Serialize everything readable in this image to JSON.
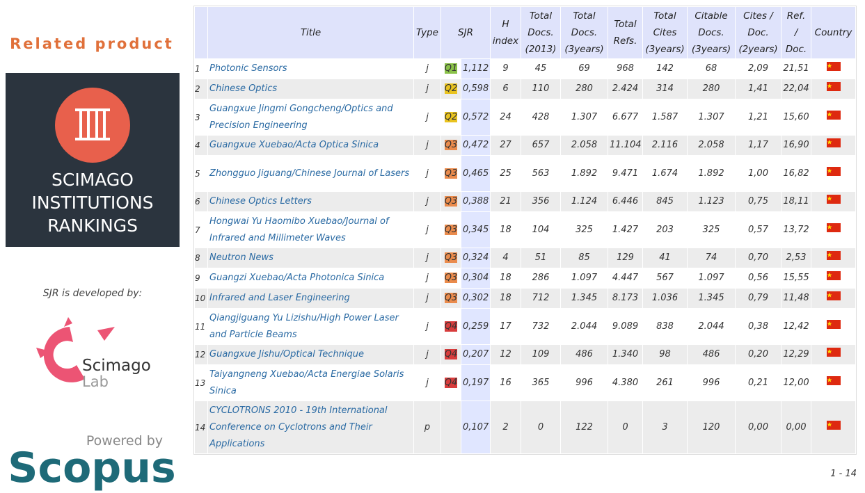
{
  "sidebar": {
    "heading": "Related product",
    "banner": [
      "SCIMAGO",
      "INSTITUTIONS",
      "RANKINGS"
    ],
    "developed_by": "SJR is developed by:",
    "lab_logo": [
      "Scimago",
      "Lab"
    ],
    "powered_by": "Powered by",
    "scopus": "Scopus"
  },
  "table": {
    "headers": [
      [
        "Title"
      ],
      [
        "Type"
      ],
      [
        "SJR"
      ],
      [
        "H",
        "index"
      ],
      [
        "Total",
        "Docs.",
        "(2013)"
      ],
      [
        "Total",
        "Docs.",
        "(3years)"
      ],
      [
        "Total",
        "Refs."
      ],
      [
        "Total",
        "Cites",
        "(3years)"
      ],
      [
        "Citable",
        "Docs.",
        "(3years)"
      ],
      [
        "Cites /",
        "Doc.",
        "(2years)"
      ],
      [
        "Ref.",
        "/",
        "Doc."
      ],
      [
        "Country"
      ]
    ],
    "rows": [
      [
        "1",
        "Photonic Sensors",
        "j",
        "Q1",
        "1,112",
        "9",
        "45",
        "69",
        "968",
        "142",
        "68",
        "2,09",
        "21,51"
      ],
      [
        "2",
        "Chinese Optics",
        "j",
        "Q2",
        "0,598",
        "6",
        "110",
        "280",
        "2.424",
        "314",
        "280",
        "1,41",
        "22,04"
      ],
      [
        "3",
        "Guangxue Jingmi Gongcheng/Optics and Precision Engineering",
        "j",
        "Q2",
        "0,572",
        "24",
        "428",
        "1.307",
        "6.677",
        "1.587",
        "1.307",
        "1,21",
        "15,60"
      ],
      [
        "4",
        "Guangxue Xuebao/Acta Optica Sinica",
        "j",
        "Q3",
        "0,472",
        "27",
        "657",
        "2.058",
        "11.104",
        "2.116",
        "2.058",
        "1,17",
        "16,90"
      ],
      [
        "5",
        "Zhongguo Jiguang/Chinese Journal of Lasers",
        "j",
        "Q3",
        "0,465",
        "25",
        "563",
        "1.892",
        "9.471",
        "1.674",
        "1.892",
        "1,00",
        "16,82"
      ],
      [
        "6",
        "Chinese Optics Letters",
        "j",
        "Q3",
        "0,388",
        "21",
        "356",
        "1.124",
        "6.446",
        "845",
        "1.123",
        "0,75",
        "18,11"
      ],
      [
        "7",
        "Hongwai Yu Haomibo Xuebao/Journal of Infrared and Millimeter Waves",
        "j",
        "Q3",
        "0,345",
        "18",
        "104",
        "325",
        "1.427",
        "203",
        "325",
        "0,57",
        "13,72"
      ],
      [
        "8",
        "Neutron News",
        "j",
        "Q3",
        "0,324",
        "4",
        "51",
        "85",
        "129",
        "41",
        "74",
        "0,70",
        "2,53"
      ],
      [
        "9",
        "Guangzi Xuebao/Acta Photonica Sinica",
        "j",
        "Q3",
        "0,304",
        "18",
        "286",
        "1.097",
        "4.447",
        "567",
        "1.097",
        "0,56",
        "15,55"
      ],
      [
        "10",
        "Infrared and Laser Engineering",
        "j",
        "Q3",
        "0,302",
        "18",
        "712",
        "1.345",
        "8.173",
        "1.036",
        "1.345",
        "0,79",
        "11,48"
      ],
      [
        "11",
        "Qiangjiguang Yu Lizishu/High Power Laser and Particle Beams",
        "j",
        "Q4",
        "0,259",
        "17",
        "732",
        "2.044",
        "9.089",
        "838",
        "2.044",
        "0,38",
        "12,42"
      ],
      [
        "12",
        "Guangxue Jishu/Optical Technique",
        "j",
        "Q4",
        "0,207",
        "12",
        "109",
        "486",
        "1.340",
        "98",
        "486",
        "0,20",
        "12,29"
      ],
      [
        "13",
        "Taiyangneng Xuebao/Acta Energiae Solaris Sinica",
        "j",
        "Q4",
        "0,197",
        "16",
        "365",
        "996",
        "4.380",
        "261",
        "996",
        "0,21",
        "12,00"
      ],
      [
        "14",
        "CYCLOTRONS 2010 - 19th International Conference on Cyclotrons and Their Applications",
        "p",
        null,
        "0,107",
        "2",
        "0",
        "122",
        "0",
        "3",
        "120",
        "0,00",
        "0,00"
      ]
    ],
    "pagination": "1 - 14"
  }
}
